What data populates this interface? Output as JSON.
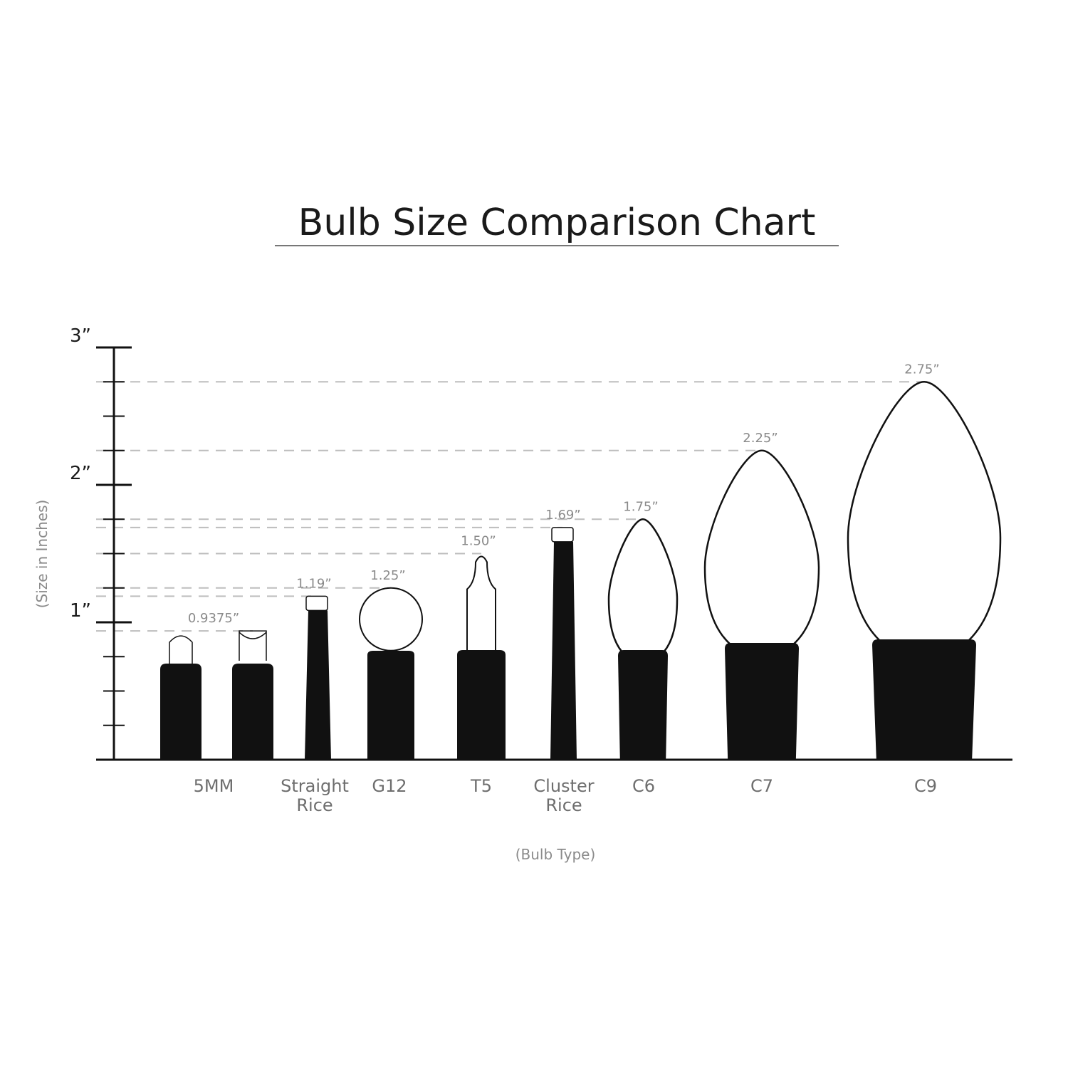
{
  "chart_data": {
    "type": "bar",
    "title": "Bulb Size Comparison Chart",
    "xlabel": "(Bulb Type)",
    "ylabel": "(Size in Inches)",
    "ylim": [
      0,
      3
    ],
    "y_ticks": [
      "1”",
      "2”",
      "3”"
    ],
    "y_minor_step": 0.25,
    "grid": "dashed reference lines at each bulb height",
    "categories": [
      "5MM",
      "Straight Rice",
      "G12",
      "T5",
      "Cluster Rice",
      "C6",
      "C7",
      "C9"
    ],
    "values": [
      0.9375,
      1.19,
      1.25,
      1.5,
      1.69,
      1.75,
      2.25,
      2.75
    ],
    "value_labels": [
      "0.9375”",
      "1.19”",
      "1.25”",
      "1.50”",
      "1.69”",
      "1.75”",
      "2.25”",
      "2.75”"
    ],
    "category_labels": [
      [
        "5MM"
      ],
      [
        "Straight",
        "Rice"
      ],
      [
        "G12"
      ],
      [
        "T5"
      ],
      [
        "Cluster",
        "Rice"
      ],
      [
        "C6"
      ],
      [
        "C7"
      ],
      [
        "C9"
      ]
    ],
    "colors": {
      "ink": "#111111",
      "dash": "#bdbdbd",
      "label": "#8a8a8a"
    }
  }
}
